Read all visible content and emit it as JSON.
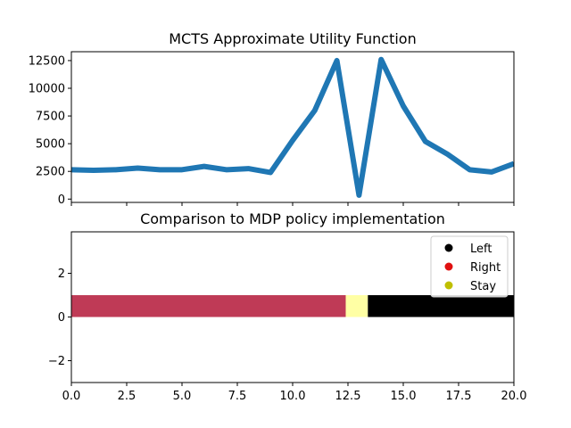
{
  "chart_data": [
    {
      "type": "line",
      "title": "MCTS Approximate Utility Function",
      "xlim": [
        0,
        20
      ],
      "ylim": [
        -300,
        13300
      ],
      "yticks": [
        0,
        2500,
        5000,
        7500,
        10000,
        12500
      ],
      "ytick_labels": [
        "0",
        "2500",
        "5000",
        "7500",
        "10000",
        "12500"
      ],
      "xticks": [
        0,
        2.5,
        5,
        7.5,
        10,
        12.5,
        15,
        17.5,
        20
      ],
      "color": "#1f77b4",
      "x": [
        0,
        1,
        2,
        3,
        4,
        5,
        6,
        7,
        8,
        9,
        10,
        11,
        12,
        13,
        14,
        15,
        16,
        17,
        18,
        19,
        20
      ],
      "y": [
        2650,
        2600,
        2650,
        2800,
        2650,
        2650,
        2950,
        2650,
        2750,
        2400,
        5300,
        8000,
        12500,
        350,
        12600,
        8400,
        5200,
        4050,
        2650,
        2450,
        3200
      ]
    },
    {
      "type": "bar",
      "title": "Comparison to MDP policy implementation",
      "xlim": [
        0,
        20
      ],
      "ylim": [
        -3,
        3.9
      ],
      "yticks": [
        -2,
        0,
        2
      ],
      "ytick_labels": [
        "−2",
        "0",
        "2"
      ],
      "xticks": [
        0,
        2.5,
        5,
        7.5,
        10,
        12.5,
        15,
        17.5,
        20
      ],
      "xtick_labels": [
        "0.0",
        "2.5",
        "5.0",
        "7.5",
        "10.0",
        "12.5",
        "15.0",
        "17.5",
        "20.0"
      ],
      "segments": [
        {
          "start": 0,
          "end": 12.4,
          "color": "#bf3a56"
        },
        {
          "start": 12.4,
          "end": 13.4,
          "color": "#ffffa4"
        },
        {
          "start": 13.4,
          "end": 20,
          "color": "#000000"
        }
      ],
      "bar_range": [
        0,
        1
      ],
      "legend": {
        "position": "top-right",
        "entries": [
          {
            "label": "Left",
            "color": "#000000"
          },
          {
            "label": "Right",
            "color": "#e01010"
          },
          {
            "label": "Stay",
            "color": "#bfbf00"
          }
        ]
      }
    }
  ]
}
